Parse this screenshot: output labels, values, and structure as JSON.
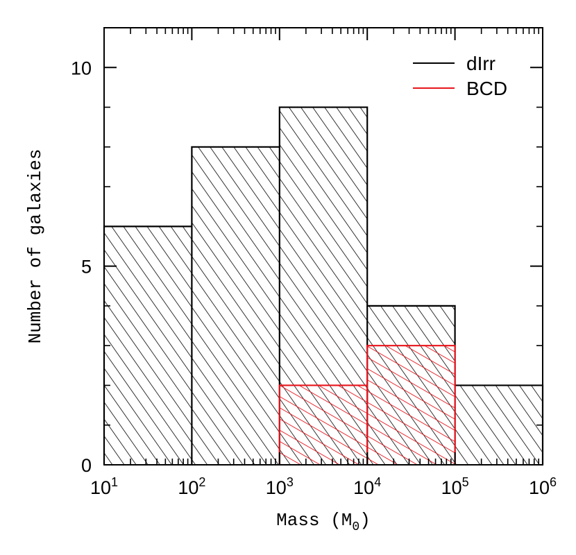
{
  "chart_data": {
    "type": "histogram",
    "xlabel": "Mass (M",
    "xlabel_sub": "0",
    "xlabel_close": ")",
    "ylabel": "Number of galaxies",
    "x_scale": "log",
    "xlim_exp": [
      1,
      6
    ],
    "ylim": [
      0,
      11
    ],
    "x_ticks": [
      {
        "exp": 1,
        "base": "10",
        "sup": "1"
      },
      {
        "exp": 2,
        "base": "10",
        "sup": "2"
      },
      {
        "exp": 3,
        "base": "10",
        "sup": "3"
      },
      {
        "exp": 4,
        "base": "10",
        "sup": "4"
      },
      {
        "exp": 5,
        "base": "10",
        "sup": "5"
      },
      {
        "exp": 6,
        "base": "10",
        "sup": "6"
      }
    ],
    "y_ticks": [
      {
        "value": 0,
        "label": "0"
      },
      {
        "value": 5,
        "label": "5"
      },
      {
        "value": 10,
        "label": "10"
      }
    ],
    "bin_edges_exp": [
      1,
      2,
      3,
      4,
      5,
      6
    ],
    "series": [
      {
        "name": "dIrr",
        "label": "dIrr",
        "color": "#000000",
        "counts": [
          6,
          8,
          9,
          4,
          2
        ]
      },
      {
        "name": "BCD",
        "label": "BCD",
        "color": "#e8141c",
        "counts": [
          0,
          0,
          2,
          3,
          0
        ]
      }
    ],
    "legend_position": "top-right"
  }
}
